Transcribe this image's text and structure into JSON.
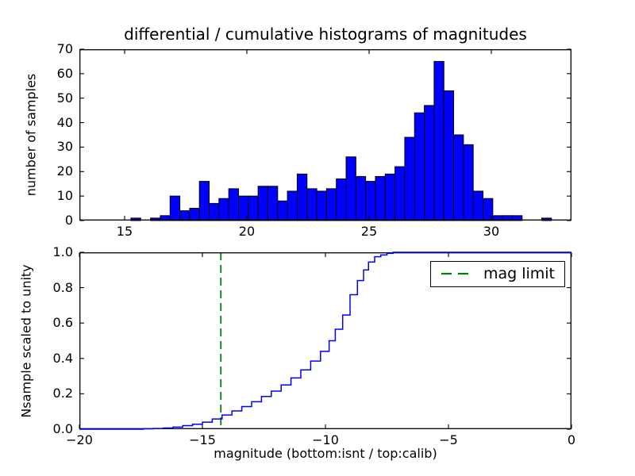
{
  "title": "differential / cumulative histograms of magnitudes",
  "colors": {
    "histogram_fill": "#0000ff",
    "histogram_edge": "#000000",
    "cumulative_line": "#0000ff",
    "mag_limit_line": "#008000",
    "axes_edge": "#000000",
    "background": "#ffffff"
  },
  "chart_data": [
    {
      "type": "bar",
      "name": "differential histogram",
      "title": "differential / cumulative histograms of magnitudes",
      "xlabel": "",
      "ylabel": "number of samples",
      "xlim": [
        13.15,
        33.28
      ],
      "ylim": [
        0,
        70
      ],
      "xticks": [
        15,
        20,
        25,
        30
      ],
      "xtick_labels": [
        "15",
        "20",
        "25",
        "30"
      ],
      "yticks": [
        0,
        10,
        20,
        30,
        40,
        50,
        60,
        70
      ],
      "ytick_labels": [
        "0",
        "10",
        "20",
        "30",
        "40",
        "50",
        "60",
        "70"
      ],
      "grid": false,
      "bins": {
        "start": 15.26,
        "width": 0.4
      },
      "values": [
        1,
        0,
        1,
        2,
        10,
        4,
        5,
        16,
        7,
        9,
        13,
        10,
        10,
        14,
        14,
        8,
        12,
        19,
        13,
        12,
        13,
        17,
        26,
        18,
        16,
        18,
        19,
        22,
        34,
        44,
        47,
        65,
        53,
        35,
        31,
        12,
        9,
        2,
        2,
        2,
        0,
        0,
        1
      ]
    },
    {
      "type": "line",
      "subtype": "cumulative-step",
      "name": "cumulative histogram scaled to unity",
      "xlabel": "magnitude (bottom:isnt / top:calib)",
      "ylabel": "Nsample scaled to unity",
      "xlim": [
        -20,
        0
      ],
      "ylim": [
        0,
        1.0
      ],
      "xticks": [
        -20,
        -15,
        -10,
        -5,
        0
      ],
      "xtick_labels": [
        "−20",
        "−15",
        "−10",
        "−5",
        "0"
      ],
      "yticks": [
        0,
        0.2,
        0.4,
        0.6,
        0.8,
        1.0
      ],
      "ytick_labels": [
        "0.0",
        "0.2",
        "0.4",
        "0.6",
        "0.8",
        "1.0"
      ],
      "grid": false,
      "flat_start_x": -20,
      "flat_end_x": 0,
      "steps": [
        [
          -17.4,
          0.002
        ],
        [
          -17.0,
          0.004
        ],
        [
          -16.6,
          0.007
        ],
        [
          -16.2,
          0.012
        ],
        [
          -15.8,
          0.02
        ],
        [
          -15.4,
          0.028
        ],
        [
          -15.0,
          0.04
        ],
        [
          -14.6,
          0.058
        ],
        [
          -14.2,
          0.08
        ],
        [
          -13.8,
          0.103
        ],
        [
          -13.4,
          0.128
        ],
        [
          -13.0,
          0.155
        ],
        [
          -12.6,
          0.185
        ],
        [
          -12.2,
          0.215
        ],
        [
          -11.8,
          0.25
        ],
        [
          -11.4,
          0.29
        ],
        [
          -11.0,
          0.335
        ],
        [
          -10.6,
          0.385
        ],
        [
          -10.2,
          0.44
        ],
        [
          -9.85,
          0.5
        ],
        [
          -9.6,
          0.565
        ],
        [
          -9.3,
          0.645
        ],
        [
          -9.0,
          0.76
        ],
        [
          -8.7,
          0.84
        ],
        [
          -8.45,
          0.9
        ],
        [
          -8.25,
          0.945
        ],
        [
          -8.0,
          0.975
        ],
        [
          -7.75,
          0.985
        ],
        [
          -7.5,
          0.994
        ],
        [
          -7.25,
          1.0
        ]
      ],
      "vline": {
        "x": -14.25,
        "style": "dashed",
        "color": "#008000",
        "label": "mag limit"
      },
      "legend": {
        "position": "upper right",
        "entries": [
          {
            "label": "mag limit",
            "line_style": "dashed",
            "color": "#008000"
          }
        ]
      }
    }
  ]
}
